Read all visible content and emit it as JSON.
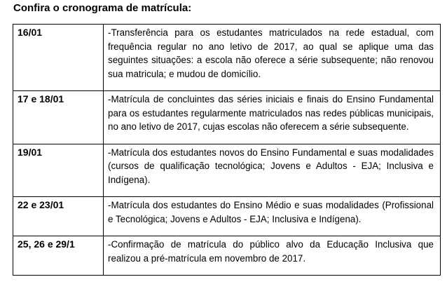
{
  "title": "Confira o cronograma de matrícula:",
  "rows": [
    {
      "date": "16/01",
      "description": "-Transferência para os estudantes matriculados na rede estadual, com frequência regular no ano letivo de 2017, ao qual se aplique uma das seguintes situações: a escola não oferece a série subsequente; não renovou sua matricula; e mudou de domicílio."
    },
    {
      "date": "17 e 18/01",
      "description": "-Matrícula de concluintes das séries iniciais e finais do Ensino Fundamental para os estudantes regularmente matriculados nas redes públicas municipais, no ano letivo de 2017, cujas escolas não oferecem a série subsequente."
    },
    {
      "date": "19/01",
      "description": "-Matrícula dos estudantes novos do Ensino Fundamental e suas modalidades (cursos de qualificação tecnológica; Jovens e Adultos - EJA; Inclusiva e Indígena)."
    },
    {
      "date": "22 e 23/01",
      "description": "-Matrícula dos estudantes do Ensino Médio e suas modalidades (Profissional e Tecnológica; Jovens e Adultos - EJA; Inclusiva e Indígena)."
    },
    {
      "date": "25, 26 e 29/1",
      "description": "-Confirmação de matrícula do público alvo da Educação Inclusiva que realizou a pré-matrícula em novembro de 2017."
    }
  ]
}
